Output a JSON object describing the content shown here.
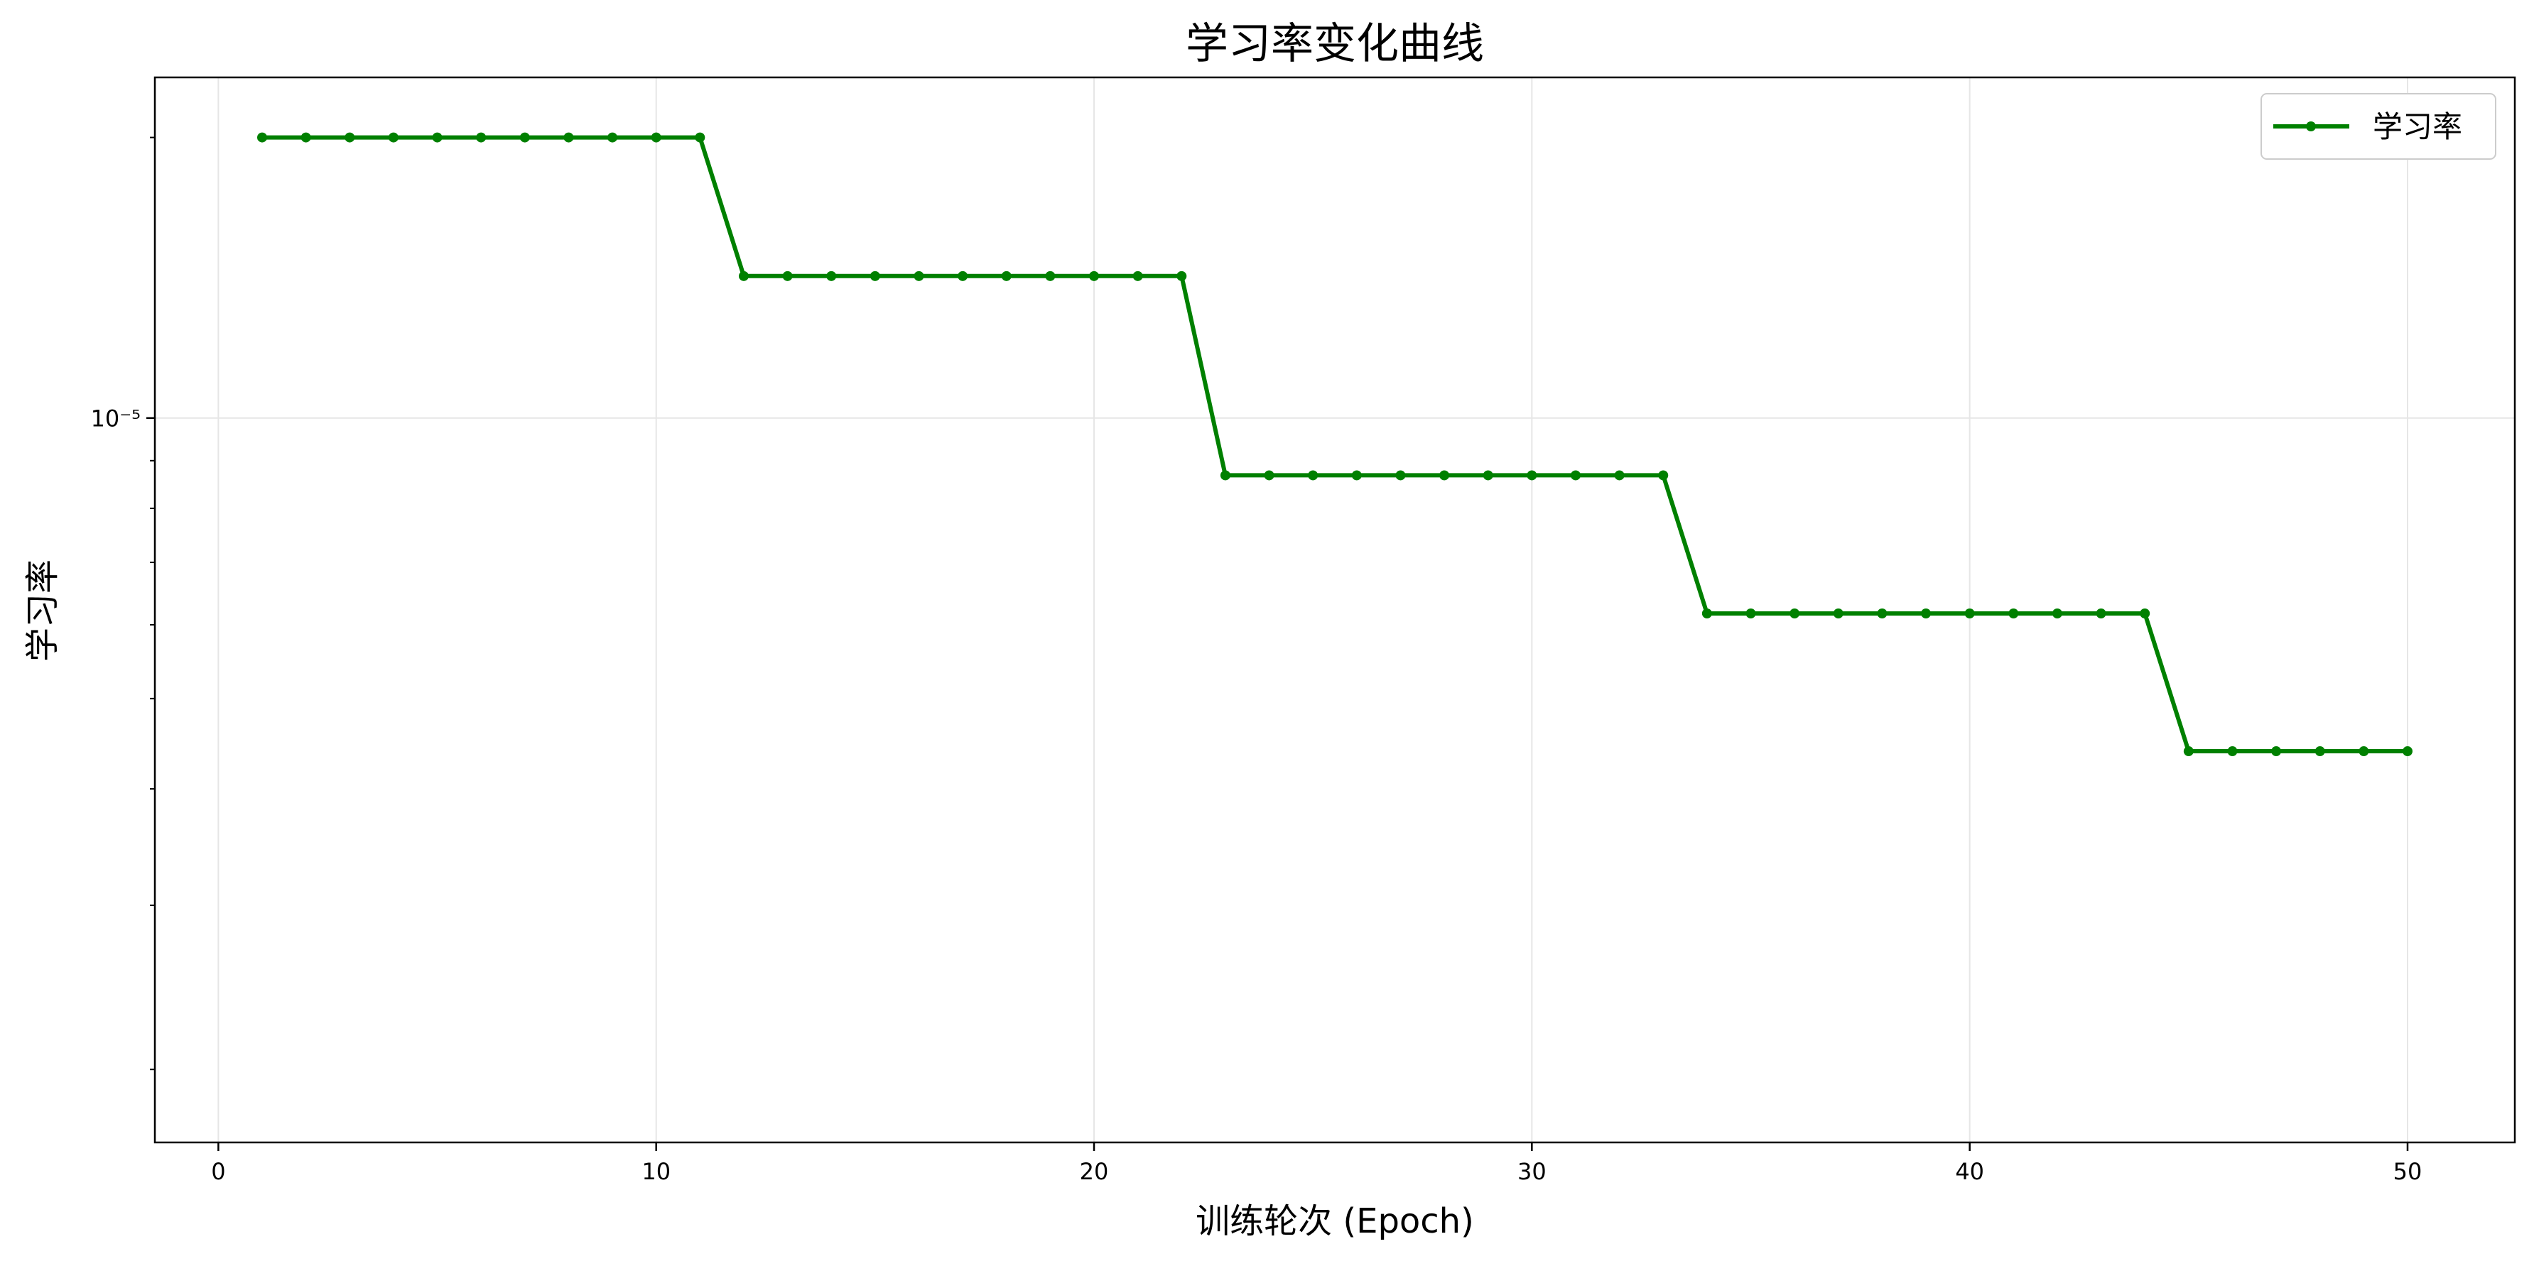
{
  "chart_data": {
    "type": "line",
    "title": "学习率变化曲线",
    "xlabel": "训练轮次 (Epoch)",
    "ylabel": "学习率",
    "x_scale": "linear",
    "y_scale": "log",
    "xlim": [
      -1.45,
      52.45
    ],
    "ylim": [
      1.67e-06,
      2.32e-05
    ],
    "x_ticks": [
      0,
      10,
      20,
      30,
      40,
      50
    ],
    "y_ticks": [
      {
        "value": 1e-05,
        "label": "10⁻⁵"
      }
    ],
    "grid": true,
    "legend_position": "top-right",
    "colors": {
      "series": "#008000",
      "grid": "#e6e6e6",
      "axes": "#000000"
    },
    "series": [
      {
        "name": "学习率",
        "x": [
          1,
          2,
          3,
          4,
          5,
          6,
          7,
          8,
          9,
          10,
          11,
          12,
          13,
          14,
          15,
          16,
          17,
          18,
          19,
          20,
          21,
          22,
          23,
          24,
          25,
          26,
          27,
          28,
          29,
          30,
          31,
          32,
          33,
          34,
          35,
          36,
          37,
          38,
          39,
          40,
          41,
          42,
          43,
          44,
          45,
          46,
          47,
          48,
          49,
          50
        ],
        "y": [
          2e-05,
          2e-05,
          2e-05,
          2e-05,
          2e-05,
          2e-05,
          2e-05,
          2e-05,
          2e-05,
          2e-05,
          2e-05,
          1.42e-05,
          1.42e-05,
          1.42e-05,
          1.42e-05,
          1.42e-05,
          1.42e-05,
          1.42e-05,
          1.42e-05,
          1.42e-05,
          1.42e-05,
          1.42e-05,
          8.68e-06,
          8.68e-06,
          8.68e-06,
          8.68e-06,
          8.68e-06,
          8.68e-06,
          8.68e-06,
          8.68e-06,
          8.68e-06,
          8.68e-06,
          8.68e-06,
          6.17e-06,
          6.17e-06,
          6.17e-06,
          6.17e-06,
          6.17e-06,
          6.17e-06,
          6.17e-06,
          6.17e-06,
          6.17e-06,
          6.17e-06,
          6.17e-06,
          4.39e-06,
          4.39e-06,
          4.39e-06,
          4.39e-06,
          4.39e-06,
          4.39e-06
        ]
      }
    ]
  }
}
